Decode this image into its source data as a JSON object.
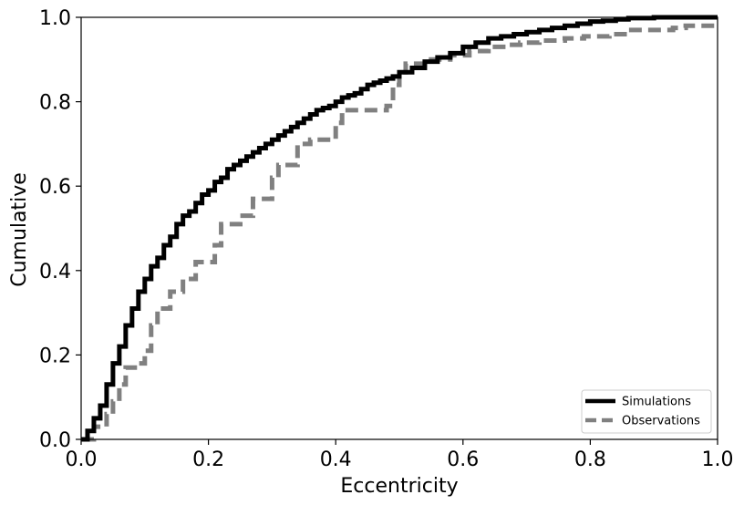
{
  "chart_data": {
    "type": "line",
    "xlabel": "Eccentricity",
    "ylabel": "Cumulative",
    "xlim": [
      0.0,
      1.0
    ],
    "ylim": [
      0.0,
      1.0
    ],
    "x_ticks": [
      "0.0",
      "0.2",
      "0.4",
      "0.6",
      "0.8",
      "1.0"
    ],
    "y_ticks": [
      "0.0",
      "0.2",
      "0.4",
      "0.6",
      "0.8",
      "1.0"
    ],
    "grid": false,
    "legend_position": "lower-right",
    "series": [
      {
        "name": "Simulations",
        "color": "#000000",
        "line_style": "solid",
        "step": true,
        "x": [
          0.0,
          0.01,
          0.02,
          0.03,
          0.04,
          0.05,
          0.06,
          0.07,
          0.08,
          0.09,
          0.1,
          0.11,
          0.12,
          0.13,
          0.14,
          0.15,
          0.16,
          0.17,
          0.18,
          0.19,
          0.2,
          0.21,
          0.22,
          0.23,
          0.24,
          0.25,
          0.26,
          0.27,
          0.28,
          0.29,
          0.3,
          0.31,
          0.32,
          0.33,
          0.34,
          0.35,
          0.36,
          0.37,
          0.38,
          0.39,
          0.4,
          0.41,
          0.42,
          0.43,
          0.44,
          0.45,
          0.46,
          0.47,
          0.48,
          0.49,
          0.5,
          0.52,
          0.54,
          0.56,
          0.58,
          0.6,
          0.62,
          0.64,
          0.66,
          0.68,
          0.7,
          0.72,
          0.74,
          0.76,
          0.78,
          0.8,
          0.82,
          0.84,
          0.86,
          0.9,
          0.95,
          1.0
        ],
        "y": [
          0.0,
          0.02,
          0.05,
          0.08,
          0.13,
          0.18,
          0.22,
          0.27,
          0.31,
          0.35,
          0.38,
          0.41,
          0.43,
          0.46,
          0.48,
          0.51,
          0.53,
          0.54,
          0.56,
          0.58,
          0.59,
          0.61,
          0.62,
          0.64,
          0.65,
          0.66,
          0.67,
          0.68,
          0.69,
          0.7,
          0.71,
          0.72,
          0.73,
          0.74,
          0.75,
          0.76,
          0.77,
          0.78,
          0.785,
          0.79,
          0.8,
          0.81,
          0.815,
          0.82,
          0.83,
          0.84,
          0.845,
          0.85,
          0.855,
          0.86,
          0.87,
          0.88,
          0.895,
          0.905,
          0.915,
          0.93,
          0.94,
          0.95,
          0.955,
          0.96,
          0.965,
          0.97,
          0.975,
          0.98,
          0.985,
          0.99,
          0.992,
          0.995,
          0.998,
          1.0,
          1.0,
          1.0
        ]
      },
      {
        "name": "Observations",
        "color": "#808080",
        "line_style": "dashed",
        "step": true,
        "x": [
          0.0,
          0.02,
          0.04,
          0.05,
          0.06,
          0.07,
          0.09,
          0.1,
          0.11,
          0.12,
          0.14,
          0.16,
          0.18,
          0.21,
          0.22,
          0.25,
          0.27,
          0.3,
          0.31,
          0.34,
          0.36,
          0.4,
          0.41,
          0.48,
          0.49,
          0.5,
          0.51,
          0.54,
          0.58,
          0.61,
          0.64,
          0.67,
          0.69,
          0.72,
          0.76,
          0.79,
          0.83,
          0.86,
          0.93,
          0.95,
          1.0
        ],
        "y": [
          0.0,
          0.03,
          0.06,
          0.09,
          0.13,
          0.17,
          0.18,
          0.21,
          0.27,
          0.31,
          0.35,
          0.38,
          0.42,
          0.46,
          0.51,
          0.53,
          0.57,
          0.62,
          0.65,
          0.7,
          0.71,
          0.75,
          0.78,
          0.79,
          0.84,
          0.87,
          0.89,
          0.9,
          0.91,
          0.92,
          0.93,
          0.935,
          0.94,
          0.945,
          0.95,
          0.955,
          0.96,
          0.97,
          0.975,
          0.98,
          0.985
        ]
      }
    ]
  }
}
